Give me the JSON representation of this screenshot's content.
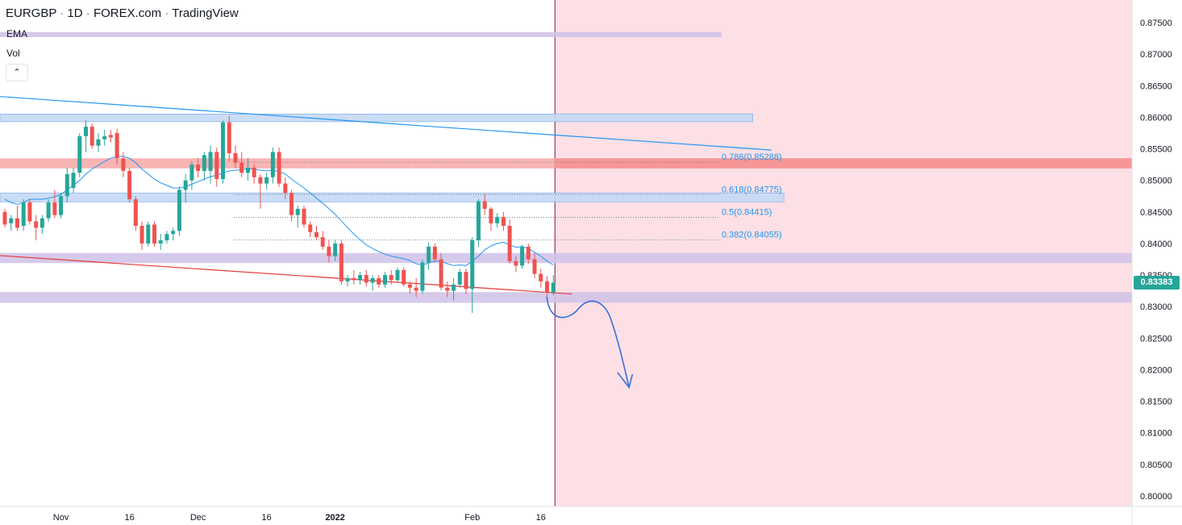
{
  "header": {
    "symbol": "EURGBP",
    "interval": "1D",
    "exchange": "FOREX.com",
    "platform": "TradingView"
  },
  "indicators": {
    "ema_label": "EMA",
    "vol_label": "Vol"
  },
  "collapse_button": {
    "icon": "chevron-up-icon",
    "glyph": "⌃"
  },
  "colors": {
    "up": "#26a69a",
    "down": "#ef5350",
    "ema": "#2196f3",
    "fib_text": "#2196f3",
    "forecast_bg": "#fde0e5",
    "divider": "#880e4f",
    "purple_zone": "#d1c4e9",
    "blue_zone": "#c5d9f5",
    "red_zone": "#f8a7a7"
  },
  "current_price": "0.83383",
  "chart_data": {
    "type": "candlestick",
    "y_ticks": [
      "0.87500",
      "0.87000",
      "0.86500",
      "0.86000",
      "0.85500",
      "0.85000",
      "0.84500",
      "0.84000",
      "0.83500",
      "0.83000",
      "0.82500",
      "0.82000",
      "0.81500",
      "0.81000",
      "0.80500",
      "0.80000"
    ],
    "ylim": [
      0.7985,
      0.8791
    ],
    "x_labels": [
      {
        "label": "Nov",
        "bar": 9
      },
      {
        "label": "16",
        "bar": 20
      },
      {
        "label": "Dec",
        "bar": 31
      },
      {
        "label": "16",
        "bar": 42
      },
      {
        "label": "2022",
        "bar": 53,
        "bold": true
      },
      {
        "label": "Feb",
        "bar": 75
      },
      {
        "label": "16",
        "bar": 86
      }
    ],
    "candles": [
      [
        0.845,
        0.8455,
        0.8425,
        0.843
      ],
      [
        0.8432,
        0.8445,
        0.842,
        0.844
      ],
      [
        0.844,
        0.846,
        0.842,
        0.8425
      ],
      [
        0.8428,
        0.847,
        0.842,
        0.8465
      ],
      [
        0.8465,
        0.847,
        0.843,
        0.8435
      ],
      [
        0.8435,
        0.8445,
        0.8405,
        0.8425
      ],
      [
        0.8425,
        0.8445,
        0.8415,
        0.844
      ],
      [
        0.844,
        0.847,
        0.8435,
        0.8465
      ],
      [
        0.8465,
        0.8485,
        0.844,
        0.8445
      ],
      [
        0.8445,
        0.848,
        0.844,
        0.8475
      ],
      [
        0.8475,
        0.852,
        0.8465,
        0.851
      ],
      [
        0.8488,
        0.852,
        0.848,
        0.8512
      ],
      [
        0.8512,
        0.8575,
        0.8505,
        0.857
      ],
      [
        0.857,
        0.8595,
        0.8545,
        0.8585
      ],
      [
        0.8585,
        0.859,
        0.855,
        0.8555
      ],
      [
        0.8555,
        0.8575,
        0.8545,
        0.8565
      ],
      [
        0.8565,
        0.858,
        0.8555,
        0.857
      ],
      [
        0.8572,
        0.858,
        0.856,
        0.8568
      ],
      [
        0.8575,
        0.8582,
        0.8525,
        0.8535
      ],
      [
        0.8535,
        0.8545,
        0.8505,
        0.8515
      ],
      [
        0.8515,
        0.852,
        0.8465,
        0.847
      ],
      [
        0.847,
        0.8475,
        0.842,
        0.8428
      ],
      [
        0.8428,
        0.8435,
        0.839,
        0.84
      ],
      [
        0.84,
        0.8435,
        0.8395,
        0.843
      ],
      [
        0.843,
        0.8435,
        0.8395,
        0.84
      ],
      [
        0.84,
        0.8415,
        0.839,
        0.8405
      ],
      [
        0.8405,
        0.842,
        0.84,
        0.8415
      ],
      [
        0.8415,
        0.8425,
        0.8405,
        0.842
      ],
      [
        0.842,
        0.849,
        0.8412,
        0.8485
      ],
      [
        0.8485,
        0.851,
        0.8465,
        0.85
      ],
      [
        0.85,
        0.853,
        0.8485,
        0.8525
      ],
      [
        0.8525,
        0.8535,
        0.8505,
        0.8515
      ],
      [
        0.8515,
        0.8545,
        0.85,
        0.854
      ],
      [
        0.8515,
        0.8555,
        0.8495,
        0.8545
      ],
      [
        0.8545,
        0.8552,
        0.849,
        0.8502
      ],
      [
        0.8502,
        0.8595,
        0.8495,
        0.8592
      ],
      [
        0.8592,
        0.8602,
        0.853,
        0.8543
      ],
      [
        0.8543,
        0.8555,
        0.852,
        0.8528
      ],
      [
        0.8528,
        0.8545,
        0.8505,
        0.8512
      ],
      [
        0.8512,
        0.8535,
        0.85,
        0.852
      ],
      [
        0.852,
        0.8525,
        0.8495,
        0.8505
      ],
      [
        0.8505,
        0.851,
        0.8455,
        0.8495
      ],
      [
        0.8495,
        0.8512,
        0.8485,
        0.8505
      ],
      [
        0.8505,
        0.8552,
        0.8495,
        0.8545
      ],
      [
        0.8545,
        0.8552,
        0.849,
        0.8495
      ],
      [
        0.8495,
        0.8505,
        0.847,
        0.848
      ],
      [
        0.848,
        0.8485,
        0.8435,
        0.8445
      ],
      [
        0.8445,
        0.846,
        0.8425,
        0.8455
      ],
      [
        0.8455,
        0.846,
        0.8425,
        0.843
      ],
      [
        0.843,
        0.8435,
        0.841,
        0.8418
      ],
      [
        0.8418,
        0.8428,
        0.8405,
        0.841
      ],
      [
        0.841,
        0.842,
        0.839,
        0.8395
      ],
      [
        0.8395,
        0.8405,
        0.837,
        0.838
      ],
      [
        0.838,
        0.8405,
        0.8372,
        0.84
      ],
      [
        0.84,
        0.8405,
        0.8335,
        0.834
      ],
      [
        0.834,
        0.835,
        0.8332,
        0.8345
      ],
      [
        0.8345,
        0.8358,
        0.8335,
        0.8342
      ],
      [
        0.8342,
        0.8355,
        0.8335,
        0.835
      ],
      [
        0.835,
        0.8358,
        0.8332,
        0.8338
      ],
      [
        0.8338,
        0.835,
        0.8325,
        0.8345
      ],
      [
        0.8345,
        0.835,
        0.833,
        0.8335
      ],
      [
        0.8335,
        0.8355,
        0.833,
        0.835
      ],
      [
        0.835,
        0.8358,
        0.8335,
        0.8342
      ],
      [
        0.8342,
        0.8362,
        0.8338,
        0.8358
      ],
      [
        0.8358,
        0.8362,
        0.8332,
        0.8335
      ],
      [
        0.8335,
        0.834,
        0.832,
        0.833
      ],
      [
        0.833,
        0.8345,
        0.8315,
        0.8325
      ],
      [
        0.8325,
        0.8375,
        0.832,
        0.837
      ],
      [
        0.837,
        0.8402,
        0.8358,
        0.8395
      ],
      [
        0.8395,
        0.84,
        0.837,
        0.8375
      ],
      [
        0.8375,
        0.8385,
        0.8325,
        0.833
      ],
      [
        0.833,
        0.834,
        0.8315,
        0.8325
      ],
      [
        0.8325,
        0.8345,
        0.831,
        0.8335
      ],
      [
        0.8335,
        0.836,
        0.833,
        0.8355
      ],
      [
        0.8355,
        0.836,
        0.832,
        0.8328
      ],
      [
        0.8328,
        0.841,
        0.829,
        0.8405
      ],
      [
        0.8405,
        0.847,
        0.8395,
        0.8467
      ],
      [
        0.8467,
        0.8478,
        0.8445,
        0.8455
      ],
      [
        0.8455,
        0.8458,
        0.842,
        0.8432
      ],
      [
        0.8432,
        0.8448,
        0.8425,
        0.8442
      ],
      [
        0.8442,
        0.845,
        0.842,
        0.8428
      ],
      [
        0.8428,
        0.8438,
        0.8368,
        0.8372
      ],
      [
        0.8372,
        0.838,
        0.8355,
        0.8365
      ],
      [
        0.8365,
        0.8398,
        0.836,
        0.8395
      ],
      [
        0.8395,
        0.84,
        0.8368,
        0.8375
      ],
      [
        0.8375,
        0.8385,
        0.8345,
        0.8352
      ],
      [
        0.8352,
        0.836,
        0.833,
        0.834
      ],
      [
        0.834,
        0.8348,
        0.8315,
        0.8322
      ],
      [
        0.8322,
        0.835,
        0.8318,
        0.8338
      ]
    ],
    "ema": [
      0.847,
      0.8465,
      0.8462,
      0.8465,
      0.847,
      0.847,
      0.847,
      0.8472,
      0.8474,
      0.8478,
      0.8485,
      0.8492,
      0.85,
      0.851,
      0.8518,
      0.8524,
      0.853,
      0.8535,
      0.8538,
      0.8538,
      0.8535,
      0.8528,
      0.8518,
      0.851,
      0.8502,
      0.8496,
      0.8492,
      0.8488,
      0.8488,
      0.849,
      0.8494,
      0.8498,
      0.8502,
      0.8506,
      0.8508,
      0.8512,
      0.8515,
      0.8516,
      0.8517,
      0.8518,
      0.8518,
      0.8516,
      0.8515,
      0.8516,
      0.8514,
      0.851,
      0.8502,
      0.8495,
      0.8488,
      0.848,
      0.8472,
      0.8464,
      0.8455,
      0.8446,
      0.8436,
      0.8425,
      0.8415,
      0.8406,
      0.8398,
      0.8392,
      0.8387,
      0.8383,
      0.838,
      0.8378,
      0.8376,
      0.8373,
      0.8368,
      0.8366,
      0.8369,
      0.8372,
      0.8372,
      0.8368,
      0.8365,
      0.8366,
      0.8365,
      0.8372,
      0.838,
      0.839,
      0.8396,
      0.84,
      0.8402,
      0.8398,
      0.8394,
      0.8395,
      0.8392,
      0.8386,
      0.838,
      0.8372,
      0.8366
    ],
    "zones": [
      {
        "kind": "purple",
        "y1": 0.8735,
        "y2": 0.8727,
        "x_end_bar": 115
      },
      {
        "kind": "blue",
        "y1": 0.8605,
        "y2": 0.8593,
        "x_end_bar": 120
      },
      {
        "kind": "red",
        "y1": 0.8535,
        "y2": 0.8519,
        "x_end_bar": null
      },
      {
        "kind": "blue",
        "y1": 0.848,
        "y2": 0.8466,
        "x_end_bar": 125
      },
      {
        "kind": "purple",
        "y1": 0.8385,
        "y2": 0.8369,
        "x_end_bar": null
      },
      {
        "kind": "purple",
        "y1": 0.8323,
        "y2": 0.8306,
        "x_end_bar": null
      }
    ],
    "fib_levels": [
      {
        "label": "0.786(0.85288)",
        "price": 0.85288
      },
      {
        "label": "0.618(0.84775)",
        "price": 0.84775
      },
      {
        "label": "0.5(0.84415)",
        "price": 0.84415
      },
      {
        "label": "0.382(0.84055)",
        "price": 0.84055
      }
    ],
    "trendlines": [
      {
        "color": "#2196f3",
        "p1": {
          "bar": -1,
          "price": 0.8633
        },
        "p2": {
          "bar": 123,
          "price": 0.8548
        }
      },
      {
        "color": "#e53935",
        "p1": {
          "bar": -1,
          "price": 0.8381
        },
        "p2": {
          "bar": 91,
          "price": 0.832
        }
      }
    ],
    "forecast_label": "projected-decline-arrow"
  }
}
